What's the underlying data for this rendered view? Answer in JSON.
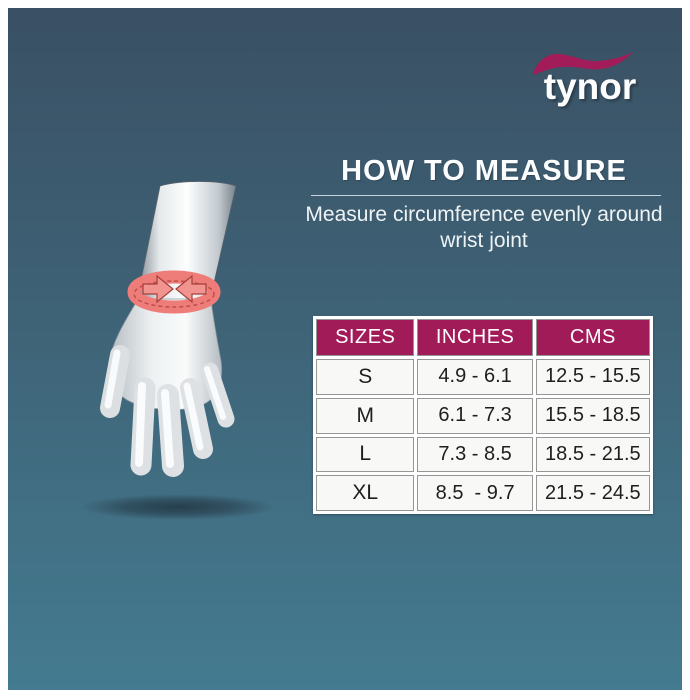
{
  "brand": {
    "name": "tynor"
  },
  "header": {
    "title": "HOW TO MEASURE",
    "subtitle": "Measure circumference evenly around wrist joint"
  },
  "colors": {
    "accent_magenta": "#a21c59",
    "table_header_bg": "#a11b58",
    "band_salmon": "#ee7c78",
    "background_top": "#3a5064",
    "background_bottom": "#447b90"
  },
  "chart_data": {
    "type": "table",
    "title": "HOW TO MEASURE",
    "subtitle": "Measure circumference evenly around wrist joint",
    "columns": [
      "SIZES",
      "INCHES",
      "CMS"
    ],
    "rows": [
      [
        "S",
        "4.9 - 6.1",
        "12.5 - 15.5"
      ],
      [
        "M",
        "6.1 - 7.3",
        "15.5 - 18.5"
      ],
      [
        "L",
        "7.3 - 8.5",
        "18.5 - 21.5"
      ],
      [
        "XL",
        "8.5  - 9.7",
        "21.5 - 24.5"
      ]
    ]
  }
}
